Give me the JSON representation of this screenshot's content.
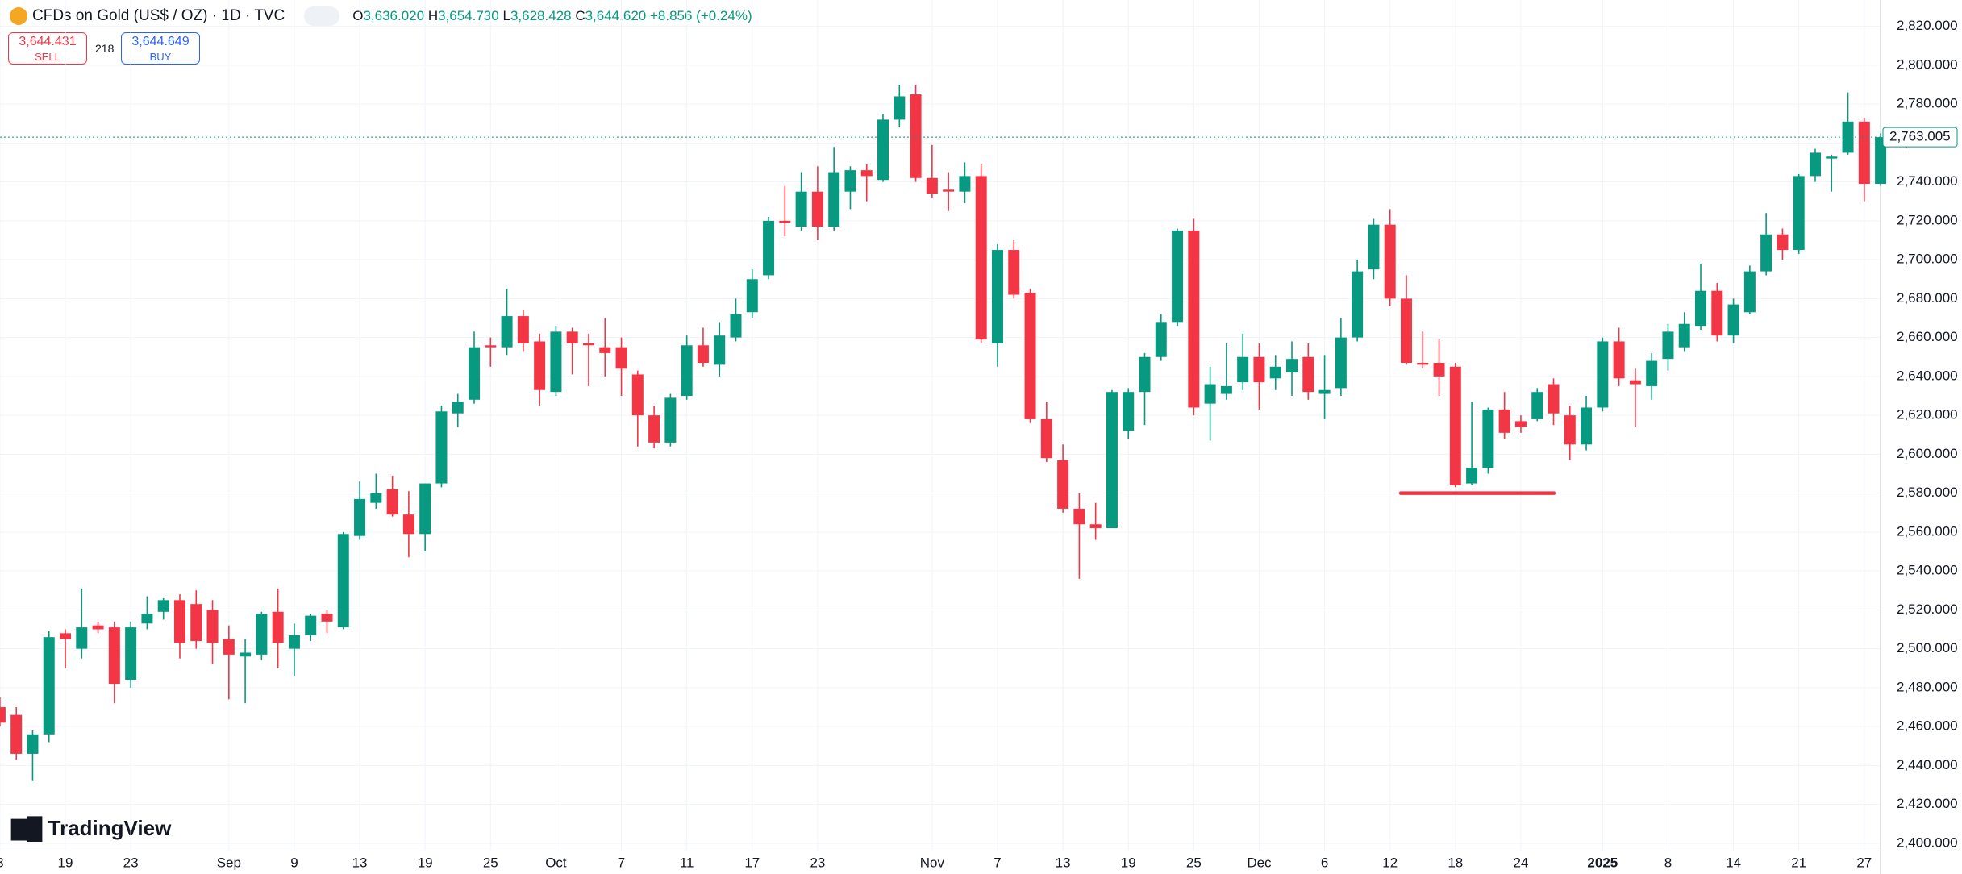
{
  "header": {
    "symbol": "CFDs on Gold (US$ / OZ) · 1D · TVC",
    "open_key": "O",
    "open": "3,636.020",
    "high_key": "H",
    "high": "3,654.730",
    "low_key": "L",
    "low": "3,628.428",
    "close_key": "C",
    "close": "3,644.620",
    "change": "+8.856 (+0.24%)",
    "sell_price": "3,644.431",
    "sell": "SELL",
    "spread": "218",
    "buy_price": "3,644.649",
    "buy": "BUY",
    "brand": "TradingView"
  },
  "chart_data": {
    "type": "candlestick",
    "up_color": "#089981",
    "down_color": "#f23645",
    "grid": true,
    "ylim": [
      2400,
      2820
    ],
    "yticks": [
      {
        "value": 2400,
        "label": "2,400.000"
      },
      {
        "value": 2420,
        "label": "2,420.000"
      },
      {
        "value": 2440,
        "label": "2,440.000"
      },
      {
        "value": 2460,
        "label": "2,460.000"
      },
      {
        "value": 2480,
        "label": "2,480.000"
      },
      {
        "value": 2500,
        "label": "2,500.000"
      },
      {
        "value": 2520,
        "label": "2,520.000"
      },
      {
        "value": 2540,
        "label": "2,540.000"
      },
      {
        "value": 2560,
        "label": "2,560.000"
      },
      {
        "value": 2580,
        "label": "2,580.000"
      },
      {
        "value": 2600,
        "label": "2,600.000"
      },
      {
        "value": 2620,
        "label": "2,620.000"
      },
      {
        "value": 2640,
        "label": "2,640.000"
      },
      {
        "value": 2660,
        "label": "2,660.000"
      },
      {
        "value": 2680,
        "label": "2,680.000"
      },
      {
        "value": 2700,
        "label": "2,700.000"
      },
      {
        "value": 2720,
        "label": "2,720.000"
      },
      {
        "value": 2740,
        "label": "2,740.000"
      },
      {
        "value": 2760,
        "label": "2,760.000"
      },
      {
        "value": 2780,
        "label": "2,780.000"
      },
      {
        "value": 2800,
        "label": "2,800.000"
      },
      {
        "value": 2820,
        "label": "2,820.000"
      }
    ],
    "categories": [
      "3",
      null,
      null,
      null,
      "19",
      null,
      null,
      null,
      "23",
      null,
      null,
      null,
      null,
      null,
      "Sep",
      null,
      null,
      null,
      "9",
      null,
      null,
      null,
      "13",
      null,
      null,
      null,
      "19",
      null,
      null,
      null,
      "25",
      null,
      null,
      null,
      "Oct",
      null,
      null,
      null,
      "7",
      null,
      null,
      null,
      "11",
      null,
      null,
      null,
      "17",
      null,
      null,
      null,
      "23",
      null,
      null,
      null,
      null,
      null,
      null,
      "Nov",
      null,
      null,
      null,
      "7",
      null,
      null,
      null,
      "13",
      null,
      null,
      null,
      "19",
      null,
      null,
      null,
      "25",
      null,
      null,
      null,
      "Dec",
      null,
      null,
      null,
      "6",
      null,
      null,
      null,
      "12",
      null,
      null,
      null,
      "18",
      null,
      null,
      null,
      "24",
      null,
      null,
      null,
      null,
      "2025",
      null,
      null,
      null,
      "8",
      null,
      null,
      null,
      "14",
      null,
      null,
      null,
      "21",
      null,
      null,
      null,
      "27",
      null
    ],
    "open": [
      2470,
      2466,
      2446,
      2456,
      2508,
      2500,
      2512,
      2511,
      2484,
      2513,
      2519,
      2525,
      2523,
      2520,
      2505,
      2496,
      2497,
      2519,
      2500,
      2507,
      2518,
      2511,
      2558,
      2575,
      2582,
      2569,
      2559,
      2585,
      2621,
      2628,
      2656,
      2655,
      2671,
      2658,
      2632,
      2663,
      2657,
      2655,
      2655,
      2641,
      2620,
      2606,
      2630,
      2656,
      2646,
      2660,
      2673,
      2692,
      2720,
      2717,
      2735,
      2717,
      2735,
      2746,
      2741,
      2772,
      2785,
      2742,
      2736,
      2735,
      2743,
      2657,
      2705,
      2683,
      2618,
      2597,
      2572,
      2564,
      2562,
      2612,
      2632,
      2650,
      2668,
      2715,
      2626,
      2631,
      2637,
      2650,
      2639,
      2642,
      2650,
      2631,
      2634,
      2660,
      2695,
      2718,
      2680,
      2647,
      2647,
      2645,
      2585,
      2593,
      2623,
      2617,
      2618,
      2636,
      2620,
      2605,
      2624,
      2658,
      2638,
      2635,
      2649,
      2655,
      2666,
      2684,
      2661,
      2673,
      2694,
      2713,
      2705,
      2743,
      2752,
      2755,
      2771,
      2739
    ],
    "high": [
      2475,
      2470,
      2458,
      2509,
      2510,
      2531,
      2514,
      2514,
      2514,
      2527,
      2526,
      2528,
      2530,
      2525,
      2512,
      2505,
      2519,
      2531,
      2513,
      2518,
      2520,
      2560,
      2586,
      2590,
      2589,
      2581,
      2585,
      2625,
      2631,
      2663,
      2660,
      2685,
      2674,
      2662,
      2666,
      2665,
      2662,
      2670,
      2660,
      2643,
      2625,
      2631,
      2661,
      2665,
      2668,
      2680,
      2695,
      2722,
      2738,
      2745,
      2748,
      2758,
      2748,
      2749,
      2775,
      2790,
      2790,
      2759,
      2745,
      2750,
      2749,
      2708,
      2710,
      2685,
      2627,
      2605,
      2580,
      2575,
      2633,
      2634,
      2652,
      2672,
      2716,
      2721,
      2645,
      2657,
      2662,
      2657,
      2651,
      2658,
      2657,
      2651,
      2670,
      2700,
      2721,
      2726,
      2692,
      2663,
      2659,
      2647,
      2627,
      2624,
      2632,
      2620,
      2634,
      2639,
      2625,
      2630,
      2660,
      2665,
      2644,
      2652,
      2667,
      2673,
      2698,
      2688,
      2680,
      2697,
      2724,
      2716,
      2744,
      2757,
      2754,
      2786,
      2773,
      2765
    ],
    "low": [
      2460,
      2443,
      2432,
      2452,
      2490,
      2495,
      2508,
      2472,
      2480,
      2510,
      2515,
      2495,
      2500,
      2492,
      2474,
      2472,
      2494,
      2490,
      2486,
      2504,
      2508,
      2510,
      2556,
      2572,
      2568,
      2547,
      2550,
      2583,
      2614,
      2626,
      2645,
      2651,
      2653,
      2625,
      2630,
      2641,
      2635,
      2640,
      2630,
      2604,
      2603,
      2604,
      2628,
      2645,
      2640,
      2658,
      2670,
      2690,
      2712,
      2715,
      2710,
      2715,
      2726,
      2730,
      2740,
      2768,
      2740,
      2732,
      2725,
      2729,
      2657,
      2645,
      2680,
      2616,
      2596,
      2570,
      2536,
      2556,
      2562,
      2608,
      2615,
      2648,
      2666,
      2620,
      2607,
      2628,
      2633,
      2623,
      2633,
      2630,
      2628,
      2618,
      2630,
      2658,
      2690,
      2676,
      2646,
      2644,
      2630,
      2583,
      2584,
      2590,
      2608,
      2611,
      2617,
      2615,
      2597,
      2602,
      2622,
      2635,
      2614,
      2628,
      2643,
      2653,
      2664,
      2658,
      2657,
      2672,
      2692,
      2700,
      2703,
      2740,
      2735,
      2754,
      2730,
      2738
    ],
    "close": [
      2462,
      2446,
      2456,
      2506,
      2505,
      2511,
      2510,
      2482,
      2511,
      2518,
      2525,
      2503,
      2504,
      2503,
      2497,
      2498,
      2518,
      2503,
      2507,
      2517,
      2514,
      2559,
      2577,
      2580,
      2569,
      2559,
      2585,
      2622,
      2627,
      2655,
      2655,
      2671,
      2657,
      2633,
      2663,
      2657,
      2656,
      2652,
      2644,
      2620,
      2606,
      2629,
      2656,
      2647,
      2661,
      2672,
      2690,
      2720,
      2719,
      2735,
      2717,
      2745,
      2746,
      2743,
      2772,
      2784,
      2742,
      2734,
      2735,
      2743,
      2659,
      2705,
      2682,
      2618,
      2598,
      2572,
      2564,
      2562,
      2632,
      2632,
      2650,
      2668,
      2715,
      2624,
      2636,
      2635,
      2650,
      2637,
      2645,
      2649,
      2632,
      2633,
      2660,
      2694,
      2718,
      2680,
      2647,
      2646,
      2640,
      2584,
      2593,
      2623,
      2611,
      2614,
      2632,
      2621,
      2605,
      2624,
      2658,
      2639,
      2636,
      2648,
      2663,
      2667,
      2684,
      2661,
      2677,
      2694,
      2713,
      2705,
      2743,
      2755,
      2753,
      2771,
      2739,
      2763
    ],
    "last_price": {
      "value": 2763.005,
      "label": "2,763.005"
    },
    "drawn_line": {
      "value": 2580,
      "color": "#f23645"
    }
  }
}
